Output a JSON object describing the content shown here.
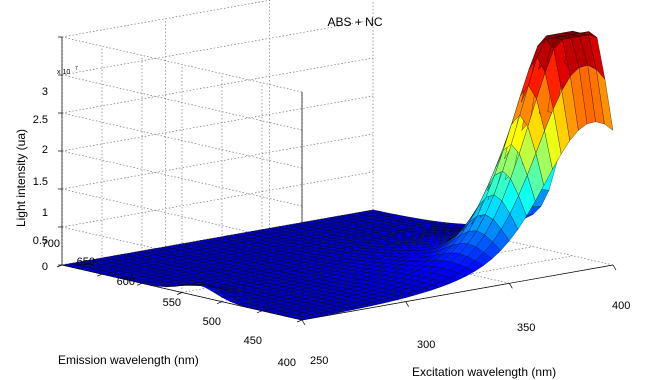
{
  "chart_data": {
    "type": "surface",
    "title": "ABS + NC",
    "xlabel": "Excitation wavelength (nm)",
    "ylabel": "Emission wavelength (nm)",
    "zlabel": "Light intensity (ua)",
    "z_exponent_label": "x 10",
    "z_exponent": "7",
    "x_ticks": [
      "250",
      "300",
      "350",
      "400"
    ],
    "y_ticks": [
      "400",
      "450",
      "500",
      "550",
      "600",
      "650",
      "700"
    ],
    "z_ticks": [
      "0",
      "0.5",
      "1",
      "1.5",
      "2",
      "2.5",
      "3"
    ],
    "xlim": [
      250,
      400
    ],
    "ylim": [
      400,
      700
    ],
    "zlim": [
      0,
      30000000
    ],
    "grid": true,
    "colormap": "jet",
    "peak": {
      "excitation_nm": 390,
      "emission_nm": 430,
      "intensity": 29000000
    },
    "secondary_feature": {
      "excitation_nm": 250,
      "emission_nm": 530,
      "intensity": 1500000
    },
    "color_scale": {
      "low": "#00008f",
      "mid_low": "#0070ff",
      "mid": "#20ffdf",
      "mid_high": "#ffdf00",
      "high": "#df0000"
    }
  }
}
